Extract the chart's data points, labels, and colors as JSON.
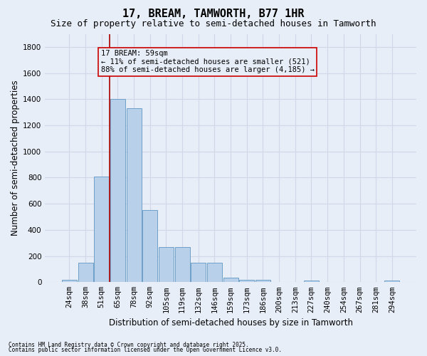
{
  "title": "17, BREAM, TAMWORTH, B77 1HR",
  "subtitle": "Size of property relative to semi-detached houses in Tamworth",
  "xlabel": "Distribution of semi-detached houses by size in Tamworth",
  "ylabel": "Number of semi-detached properties",
  "categories": [
    "24sqm",
    "38sqm",
    "51sqm",
    "65sqm",
    "78sqm",
    "92sqm",
    "105sqm",
    "119sqm",
    "132sqm",
    "146sqm",
    "159sqm",
    "173sqm",
    "186sqm",
    "200sqm",
    "213sqm",
    "227sqm",
    "240sqm",
    "254sqm",
    "267sqm",
    "281sqm",
    "294sqm"
  ],
  "values": [
    20,
    150,
    810,
    1400,
    1330,
    550,
    270,
    270,
    150,
    150,
    35,
    20,
    20,
    0,
    0,
    10,
    0,
    0,
    0,
    0,
    10
  ],
  "bar_color": "#b8d0ea",
  "bar_edge_color": "#6ca0c8",
  "background_color": "#e8eef8",
  "grid_color": "#d0d8e8",
  "vline_color": "#aa0000",
  "vline_position": 2.5,
  "annotation_title": "17 BREAM: 59sqm",
  "annotation_line1": "← 11% of semi-detached houses are smaller (521)",
  "annotation_line2": "88% of semi-detached houses are larger (4,185) →",
  "annotation_box_color": "#cc0000",
  "ylim": [
    0,
    1900
  ],
  "yticks": [
    0,
    200,
    400,
    600,
    800,
    1000,
    1200,
    1400,
    1600,
    1800
  ],
  "footer1": "Contains HM Land Registry data © Crown copyright and database right 2025.",
  "footer2": "Contains public sector information licensed under the Open Government Licence v3.0.",
  "title_fontsize": 11,
  "subtitle_fontsize": 9,
  "xlabel_fontsize": 8.5,
  "ylabel_fontsize": 8.5,
  "tick_fontsize": 7.5,
  "annotation_fontsize": 7.5,
  "footer_fontsize": 5.5
}
